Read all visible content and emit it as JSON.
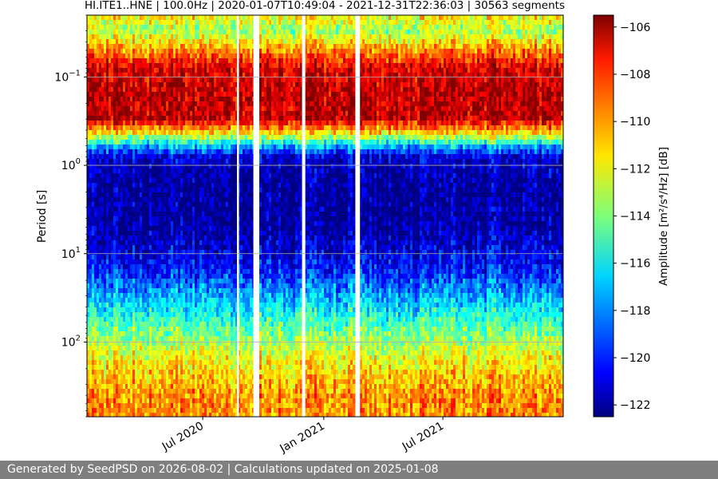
{
  "chart_data": {
    "type": "heatmap",
    "title": "HI.ITE1..HNE | 100.0Hz | 2020-01-07T10:49:04 - 2021-12-31T22:36:03 | 30563 segments",
    "xlabel": "",
    "ylabel": "Period [s]",
    "x_range": [
      "2020-01-07",
      "2021-12-31"
    ],
    "x_ticks": [
      {
        "label": "Jul 2020",
        "date": "2020-07-01"
      },
      {
        "label": "Jan 2021",
        "date": "2021-01-01"
      },
      {
        "label": "Jul 2021",
        "date": "2021-07-01"
      }
    ],
    "y_scale": "log",
    "y_inverted": true,
    "y_range": [
      0.02,
      700
    ],
    "y_ticks": [
      {
        "base": "10",
        "exp": "−1",
        "value": 0.1
      },
      {
        "base": "10",
        "exp": "0",
        "value": 1
      },
      {
        "base": "10",
        "exp": "1",
        "value": 10
      },
      {
        "base": "10",
        "exp": "2",
        "value": 100
      }
    ],
    "grid": true,
    "colormap": "jet",
    "colorbar": {
      "label": "Amplitude [m²/s⁴/Hz] [dB]",
      "range": [
        -122.5,
        -105.5
      ],
      "ticks": [
        "−106",
        "−108",
        "−110",
        "−112",
        "−114",
        "−116",
        "−118",
        "−120",
        "−122"
      ],
      "tick_values": [
        -106,
        -108,
        -110,
        -112,
        -114,
        -116,
        -118,
        -120,
        -122
      ]
    },
    "data_gaps": [
      {
        "start": "2020-08-22",
        "end": "2020-08-25"
      },
      {
        "start": "2020-09-16",
        "end": "2020-09-25"
      },
      {
        "start": "2020-11-29",
        "end": "2020-12-04"
      },
      {
        "start": "2021-02-19",
        "end": "2021-02-25"
      }
    ],
    "amplitude_profile": [
      {
        "period": 0.02,
        "db": -111.5
      },
      {
        "period": 0.03,
        "db": -113.5
      },
      {
        "period": 0.05,
        "db": -110
      },
      {
        "period": 0.08,
        "db": -107
      },
      {
        "period": 0.15,
        "db": -106.5
      },
      {
        "period": 0.3,
        "db": -106.5
      },
      {
        "period": 0.45,
        "db": -112
      },
      {
        "period": 0.6,
        "db": -117
      },
      {
        "period": 0.8,
        "db": -121
      },
      {
        "period": 1.5,
        "db": -122
      },
      {
        "period": 5,
        "db": -122
      },
      {
        "period": 15,
        "db": -120
      },
      {
        "period": 30,
        "db": -117.5
      },
      {
        "period": 60,
        "db": -115
      },
      {
        "period": 150,
        "db": -112
      },
      {
        "period": 400,
        "db": -110
      },
      {
        "period": 700,
        "db": -110
      }
    ]
  },
  "footer": {
    "text": "Generated by SeedPSD on 2026-08-02 | Calculations updated on 2025-01-08"
  }
}
